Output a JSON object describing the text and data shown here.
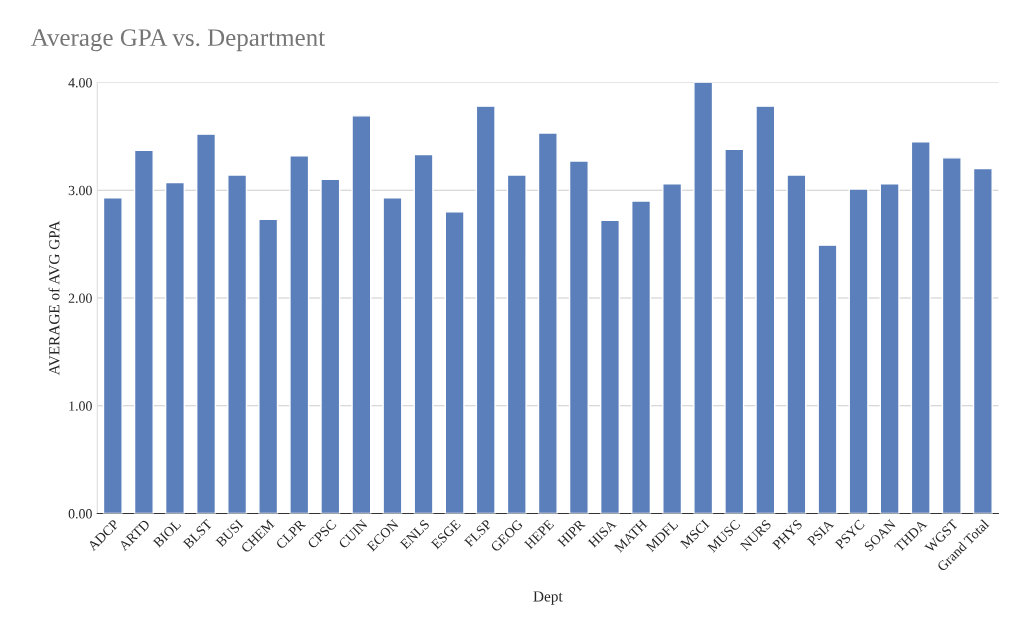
{
  "chart_data": {
    "type": "bar",
    "title": "Average GPA vs. Department",
    "xlabel": "Dept",
    "ylabel": "AVERAGE of AVG GPA",
    "categories": [
      "ADCP",
      "ARTD",
      "BIOL",
      "BLST",
      "BUSI",
      "CHEM",
      "CLPR",
      "CPSC",
      "CUIN",
      "ECON",
      "ENLS",
      "ESGE",
      "FLSP",
      "GEOG",
      "HEPE",
      "HIPR",
      "HISA",
      "MATH",
      "MDFL",
      "MSCI",
      "MUSC",
      "NURS",
      "PHYS",
      "PSIA",
      "PSYC",
      "SOAN",
      "THDA",
      "WGST",
      "Grand Total"
    ],
    "values": [
      2.93,
      3.37,
      3.07,
      3.52,
      3.14,
      2.73,
      3.32,
      3.1,
      3.69,
      2.93,
      3.33,
      2.8,
      3.78,
      3.14,
      3.53,
      3.27,
      2.72,
      2.9,
      3.06,
      4.0,
      3.38,
      3.78,
      3.14,
      2.49,
      3.01,
      3.06,
      3.45,
      3.3,
      3.2
    ],
    "color": "#5b7fbb",
    "ylim": [
      0,
      4
    ],
    "yticks": [
      {
        "value": 0,
        "label": "0.00"
      },
      {
        "value": 1,
        "label": "1.00"
      },
      {
        "value": 2,
        "label": "2.00"
      },
      {
        "value": 3,
        "label": "3.00"
      },
      {
        "value": 4,
        "label": "4.00"
      }
    ],
    "grid": "y",
    "legend": false
  }
}
